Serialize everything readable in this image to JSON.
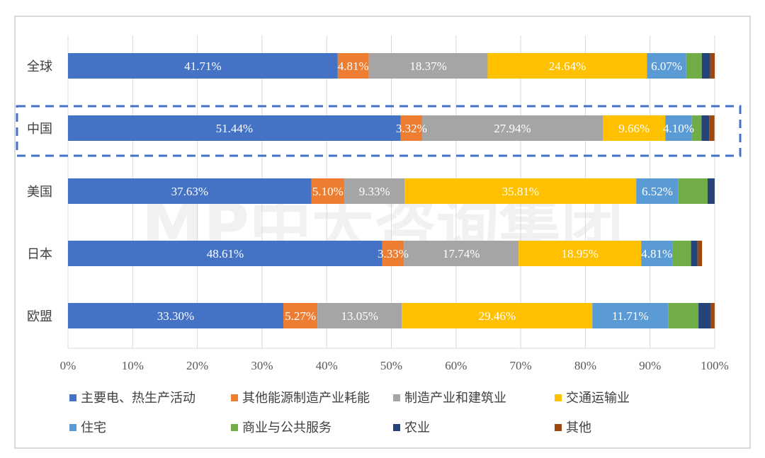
{
  "chart_data": {
    "type": "bar",
    "orientation": "horizontal",
    "stacked": "percent",
    "categories": [
      "全球",
      "中国",
      "美国",
      "日本",
      "欧盟"
    ],
    "series": [
      {
        "name": "主要电、热生产活动",
        "color": "#4472c4",
        "values": [
          41.71,
          51.44,
          37.63,
          48.61,
          33.3
        ]
      },
      {
        "name": "其他能源制造产业耗能",
        "color": "#ed7d31",
        "values": [
          4.81,
          3.32,
          5.1,
          3.33,
          5.27
        ]
      },
      {
        "name": "制造产业和建筑业",
        "color": "#a5a5a5",
        "values": [
          18.37,
          27.94,
          9.33,
          17.74,
          13.05
        ]
      },
      {
        "name": "交通运输业",
        "color": "#ffc000",
        "values": [
          24.64,
          9.66,
          35.81,
          18.95,
          29.46
        ]
      },
      {
        "name": "住宅",
        "color": "#5b9bd5",
        "values": [
          6.07,
          4.1,
          6.52,
          4.81,
          11.71
        ]
      },
      {
        "name": "商业与公共服务",
        "color": "#70ad47",
        "values": [
          2.4,
          1.5,
          4.5,
          2.9,
          4.7
        ]
      },
      {
        "name": "农业",
        "color": "#264478",
        "values": [
          1.3,
          1.2,
          1.1,
          1.0,
          1.9
        ]
      },
      {
        "name": "其他",
        "color": "#9e480e",
        "values": [
          0.7,
          0.8,
          0.0,
          0.7,
          0.6
        ]
      }
    ],
    "data_labels": [
      [
        "41.71%",
        "4.81%",
        "18.37%",
        "24.64%",
        "6.07%",
        "",
        "",
        ""
      ],
      [
        "51.44%",
        "3.32%",
        "27.94%",
        "9.66%",
        "4.10%",
        "",
        "",
        ""
      ],
      [
        "37.63%",
        "5.10%",
        "9.33%",
        "35.81%",
        "6.52%",
        "",
        "",
        ""
      ],
      [
        "48.61%",
        "3.33%",
        "17.74%",
        "18.95%",
        "4.81%",
        "",
        "",
        ""
      ],
      [
        "33.30%",
        "5.27%",
        "13.05%",
        "29.46%",
        "11.71%",
        "",
        "",
        ""
      ]
    ],
    "x_ticks": [
      "0%",
      "10%",
      "20%",
      "30%",
      "40%",
      "50%",
      "60%",
      "70%",
      "80%",
      "90%",
      "100%"
    ],
    "xlim": [
      0,
      100
    ],
    "xlabel": "",
    "ylabel": "",
    "title": "",
    "legend_position": "bottom",
    "highlighted_category": "中国",
    "grid": "vertical"
  },
  "watermark": "MP中大咨询集团"
}
